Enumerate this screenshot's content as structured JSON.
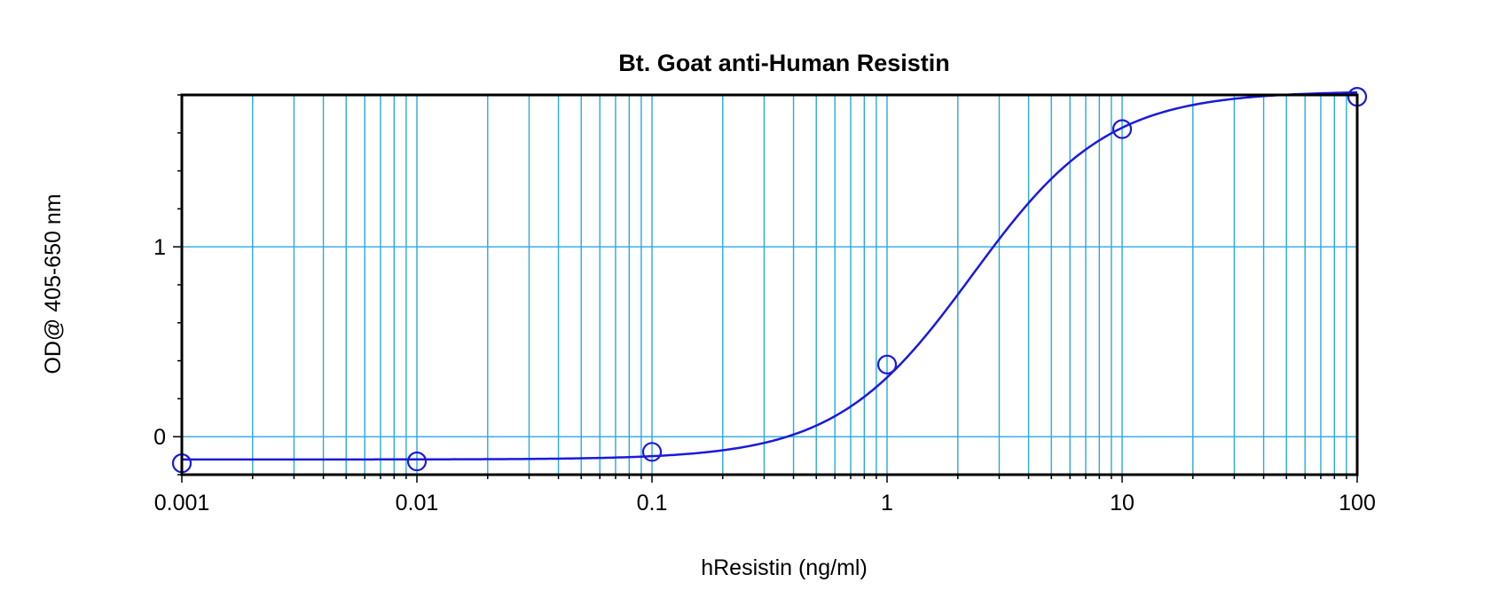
{
  "chart_data": {
    "type": "scatter",
    "title": "Bt. Goat anti-Human Resistin",
    "xlabel": "hResistin (ng/ml)",
    "ylabel": "OD@ 405-650 nm",
    "x_scale": "log",
    "xlim": [
      0.001,
      100
    ],
    "ylim": [
      -0.2,
      1.8
    ],
    "x_ticks": [
      0.001,
      0.01,
      0.1,
      1,
      10,
      100
    ],
    "x_tick_labels": [
      "0.001",
      "0.01",
      "0.1",
      "1",
      "10",
      "100"
    ],
    "y_ticks": [
      0,
      1
    ],
    "y_tick_labels": [
      "0",
      "1"
    ],
    "grid": true,
    "series": [
      {
        "marker": "open-circle",
        "color": "#1a1adb",
        "points": [
          {
            "x": 0.001,
            "y": -0.14
          },
          {
            "x": 0.01,
            "y": -0.13
          },
          {
            "x": 0.1,
            "y": -0.08
          },
          {
            "x": 1,
            "y": 0.38
          },
          {
            "x": 10,
            "y": 1.62
          },
          {
            "x": 100,
            "y": 1.79
          }
        ]
      }
    ],
    "fit_curve": {
      "type": "4PL",
      "color": "#1a1adb",
      "bottom": -0.12,
      "top": 1.82,
      "ec50": 2.3,
      "hill": 1.5
    },
    "colors": {
      "grid": "#29a9df",
      "axis": "#000000",
      "series": "#1a1adb"
    }
  }
}
